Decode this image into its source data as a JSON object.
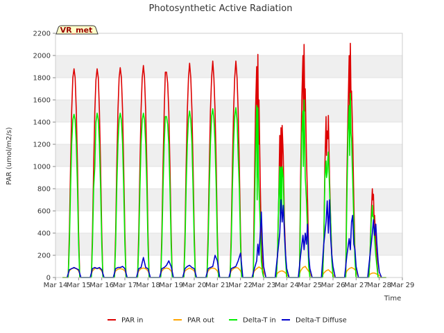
{
  "chart_data": {
    "type": "line",
    "title": "Photosynthetic Active Radiation",
    "xlabel": "Time",
    "ylabel": "PAR (umol/m2/s)",
    "site_label": "VR_met",
    "ylim": [
      0,
      2200
    ],
    "xlim": [
      14,
      29
    ],
    "grid": "horizontal bands",
    "legend_position": "bottom-center",
    "x_ticks": [
      14,
      15,
      16,
      17,
      18,
      19,
      20,
      21,
      22,
      23,
      24,
      25,
      26,
      27,
      28,
      29
    ],
    "x_tick_labels": [
      "Mar 14",
      "Mar 15",
      "Mar 16",
      "Mar 17",
      "Mar 18",
      "Mar 19",
      "Mar 20",
      "Mar 21",
      "Mar 22",
      "Mar 23",
      "Mar 24",
      "Mar 25",
      "Mar 26",
      "Mar 27",
      "Mar 28",
      "Mar 29"
    ],
    "y_ticks": [
      0,
      200,
      400,
      600,
      800,
      1000,
      1200,
      1400,
      1600,
      1800,
      2000,
      2200
    ],
    "series": [
      {
        "name": "PAR in",
        "color": "#dd0000",
        "x": [
          14.3,
          14.55,
          14.6,
          14.65,
          14.7,
          14.75,
          14.8,
          14.85,
          14.9,
          14.95,
          15.0,
          15.05,
          15.3,
          15.55,
          15.6,
          15.65,
          15.7,
          15.75,
          15.8,
          15.85,
          15.9,
          15.95,
          16.0,
          16.05,
          16.3,
          16.55,
          16.6,
          16.65,
          16.7,
          16.75,
          16.8,
          16.85,
          16.9,
          16.95,
          17.0,
          17.05,
          17.3,
          17.55,
          17.6,
          17.65,
          17.7,
          17.75,
          17.8,
          17.85,
          17.9,
          17.95,
          18.0,
          18.05,
          18.3,
          18.55,
          18.6,
          18.65,
          18.7,
          18.75,
          18.8,
          18.85,
          18.9,
          18.95,
          19.0,
          19.05,
          19.3,
          19.55,
          19.6,
          19.65,
          19.7,
          19.75,
          19.8,
          19.85,
          19.9,
          19.95,
          20.0,
          20.05,
          20.3,
          20.55,
          20.6,
          20.65,
          20.7,
          20.75,
          20.8,
          20.85,
          20.9,
          20.95,
          21.0,
          21.05,
          21.3,
          21.55,
          21.6,
          21.65,
          21.7,
          21.75,
          21.8,
          21.85,
          21.9,
          21.95,
          22.0,
          22.05,
          22.3,
          22.55,
          22.6,
          22.65,
          22.7,
          22.72,
          22.75,
          22.78,
          22.8,
          22.85,
          22.9,
          22.95,
          23.0,
          23.05,
          23.3,
          23.55,
          23.6,
          23.65,
          23.7,
          23.72,
          23.75,
          23.78,
          23.8,
          23.85,
          23.9,
          23.95,
          24.0,
          24.05,
          24.3,
          24.55,
          24.6,
          24.65,
          24.7,
          24.72,
          24.75,
          24.78,
          24.8,
          24.85,
          24.9,
          24.95,
          25.0,
          25.05,
          25.3,
          25.55,
          25.6,
          25.65,
          25.7,
          25.72,
          25.75,
          25.78,
          25.8,
          25.85,
          25.9,
          25.95,
          26.0,
          26.05,
          26.3,
          26.55,
          26.6,
          26.65,
          26.7,
          26.72,
          26.75,
          26.78,
          26.8,
          26.85,
          26.9,
          26.95,
          27.0,
          27.05,
          27.3,
          27.55,
          27.6,
          27.65,
          27.7,
          27.72,
          27.75,
          27.78,
          27.8,
          27.85,
          27.9,
          27.95,
          28.0,
          28.05,
          28.3
        ],
        "y": [
          0,
          0,
          400,
          1000,
          1500,
          1800,
          1880,
          1800,
          1500,
          1000,
          400,
          0,
          0,
          0,
          400,
          1000,
          1500,
          1780,
          1880,
          1800,
          1500,
          1000,
          400,
          0,
          0,
          0,
          400,
          1000,
          1500,
          1800,
          1890,
          1800,
          1500,
          1000,
          400,
          0,
          0,
          0,
          400,
          1000,
          1500,
          1800,
          1910,
          1800,
          1500,
          1000,
          400,
          0,
          0,
          0,
          400,
          1000,
          1500,
          1850,
          1850,
          1750,
          1500,
          1000,
          400,
          0,
          0,
          0,
          400,
          1000,
          1500,
          1800,
          1930,
          1800,
          1500,
          1000,
          400,
          0,
          0,
          0,
          400,
          1000,
          1500,
          1800,
          1950,
          1800,
          1500,
          1000,
          400,
          0,
          0,
          0,
          400,
          1000,
          1500,
          1800,
          1950,
          1800,
          1500,
          1000,
          400,
          0,
          0,
          0,
          800,
          1500,
          1900,
          900,
          2010,
          1200,
          1600,
          900,
          300,
          100,
          0,
          0,
          0,
          0,
          200,
          700,
          1280,
          600,
          1350,
          700,
          1370,
          1100,
          500,
          200,
          0,
          0,
          0,
          0,
          900,
          1600,
          2000,
          1300,
          2100,
          1500,
          1700,
          1100,
          700,
          200,
          0,
          0,
          0,
          0,
          300,
          1000,
          1450,
          1100,
          1320,
          1250,
          1460,
          900,
          500,
          200,
          0,
          0,
          0,
          0,
          900,
          1500,
          2000,
          1400,
          2110,
          1600,
          1680,
          1300,
          700,
          200,
          0,
          0,
          0,
          0,
          200,
          550,
          800,
          700,
          750,
          500,
          560,
          300,
          150,
          0,
          0,
          0,
          0
        ]
      },
      {
        "name": "PAR out",
        "color": "#ffa500",
        "x": [
          14.5,
          14.6,
          14.7,
          14.8,
          14.9,
          15.0,
          15.1,
          15.5,
          15.6,
          15.7,
          15.8,
          15.9,
          16.0,
          16.1,
          16.5,
          16.6,
          16.7,
          16.8,
          16.9,
          17.0,
          17.1,
          17.5,
          17.6,
          17.7,
          17.8,
          17.9,
          18.0,
          18.1,
          18.5,
          18.6,
          18.7,
          18.8,
          18.9,
          19.0,
          19.1,
          19.5,
          19.6,
          19.7,
          19.8,
          19.9,
          20.0,
          20.1,
          20.5,
          20.6,
          20.7,
          20.8,
          20.9,
          21.0,
          21.1,
          21.5,
          21.6,
          21.7,
          21.8,
          21.9,
          22.0,
          22.1,
          22.5,
          22.6,
          22.7,
          22.8,
          22.9,
          23.0,
          23.1,
          23.5,
          23.6,
          23.7,
          23.8,
          23.9,
          24.0,
          24.1,
          24.5,
          24.6,
          24.7,
          24.8,
          24.9,
          25.0,
          25.1,
          25.5,
          25.6,
          25.7,
          25.8,
          25.9,
          26.0,
          26.1,
          26.5,
          26.6,
          26.7,
          26.8,
          26.9,
          27.0,
          27.1,
          27.5,
          27.6,
          27.7,
          27.8,
          27.9,
          28.0,
          28.1
        ],
        "y": [
          0,
          60,
          80,
          85,
          80,
          60,
          0,
          0,
          60,
          80,
          85,
          80,
          60,
          0,
          0,
          60,
          75,
          80,
          75,
          60,
          0,
          0,
          60,
          80,
          85,
          80,
          60,
          0,
          0,
          60,
          80,
          85,
          80,
          60,
          0,
          0,
          60,
          75,
          85,
          75,
          60,
          0,
          0,
          60,
          80,
          85,
          80,
          60,
          0,
          0,
          60,
          80,
          90,
          85,
          60,
          0,
          0,
          60,
          80,
          95,
          80,
          60,
          0,
          0,
          40,
          55,
          60,
          50,
          30,
          0,
          0,
          60,
          90,
          100,
          70,
          40,
          0,
          0,
          40,
          60,
          70,
          50,
          30,
          0,
          0,
          60,
          80,
          90,
          80,
          60,
          0,
          0,
          30,
          40,
          40,
          30,
          20,
          0
        ]
      },
      {
        "name": "Delta-T in",
        "color": "#00ee00",
        "x": [
          14.3,
          14.55,
          14.6,
          14.65,
          14.7,
          14.75,
          14.8,
          14.85,
          14.9,
          14.95,
          15.0,
          15.05,
          15.3,
          15.55,
          15.6,
          15.65,
          15.7,
          15.75,
          15.8,
          15.85,
          15.9,
          15.95,
          16.0,
          16.05,
          16.3,
          16.55,
          16.6,
          16.65,
          16.7,
          16.75,
          16.8,
          16.85,
          16.9,
          16.95,
          17.0,
          17.05,
          17.3,
          17.55,
          17.6,
          17.65,
          17.7,
          17.75,
          17.8,
          17.85,
          17.9,
          17.95,
          18.0,
          18.05,
          18.3,
          18.55,
          18.6,
          18.65,
          18.7,
          18.75,
          18.8,
          18.85,
          18.9,
          18.95,
          19.0,
          19.05,
          19.3,
          19.55,
          19.6,
          19.65,
          19.7,
          19.75,
          19.8,
          19.85,
          19.9,
          19.95,
          20.0,
          20.05,
          20.3,
          20.55,
          20.6,
          20.65,
          20.7,
          20.75,
          20.8,
          20.85,
          20.9,
          20.95,
          21.0,
          21.05,
          21.3,
          21.55,
          21.6,
          21.65,
          21.7,
          21.75,
          21.8,
          21.85,
          21.9,
          21.95,
          22.0,
          22.05,
          22.3,
          22.55,
          22.6,
          22.65,
          22.7,
          22.72,
          22.75,
          22.78,
          22.8,
          22.85,
          22.9,
          22.95,
          23.0,
          23.05,
          23.3,
          23.55,
          23.6,
          23.65,
          23.7,
          23.72,
          23.75,
          23.78,
          23.8,
          23.85,
          23.9,
          23.95,
          24.0,
          24.05,
          24.3,
          24.55,
          24.6,
          24.65,
          24.7,
          24.72,
          24.75,
          24.78,
          24.8,
          24.85,
          24.9,
          24.95,
          25.0,
          25.05,
          25.3,
          25.55,
          25.6,
          25.65,
          25.7,
          25.72,
          25.75,
          25.78,
          25.8,
          25.85,
          25.9,
          25.95,
          26.0,
          26.05,
          26.3,
          26.55,
          26.6,
          26.65,
          26.7,
          26.72,
          26.75,
          26.78,
          26.8,
          26.85,
          26.9,
          26.95,
          27.0,
          27.05,
          27.3,
          27.55,
          27.6,
          27.65,
          27.7,
          27.72,
          27.75,
          27.78,
          27.8,
          27.85,
          27.9,
          27.95,
          28.0,
          28.05,
          28.3
        ],
        "y": [
          0,
          0,
          300,
          800,
          1200,
          1420,
          1470,
          1420,
          1200,
          800,
          300,
          0,
          0,
          0,
          300,
          800,
          1000,
          1400,
          1480,
          1420,
          1200,
          800,
          300,
          0,
          0,
          0,
          300,
          800,
          1200,
          1420,
          1480,
          1420,
          1200,
          800,
          300,
          0,
          0,
          0,
          300,
          800,
          1200,
          1420,
          1480,
          1420,
          1200,
          800,
          300,
          0,
          0,
          0,
          300,
          800,
          1200,
          1450,
          1450,
          1380,
          1200,
          800,
          300,
          0,
          0,
          0,
          300,
          800,
          1200,
          1430,
          1500,
          1420,
          1200,
          800,
          300,
          0,
          0,
          0,
          300,
          800,
          1200,
          1450,
          1520,
          1430,
          1200,
          800,
          300,
          0,
          0,
          0,
          300,
          800,
          1200,
          1450,
          1530,
          1420,
          1100,
          800,
          300,
          0,
          0,
          0,
          500,
          1100,
          1550,
          700,
          1530,
          900,
          800,
          500,
          150,
          50,
          0,
          0,
          0,
          0,
          200,
          700,
          1000,
          500,
          990,
          600,
          1000,
          900,
          400,
          150,
          0,
          0,
          0,
          0,
          700,
          1300,
          1500,
          1000,
          1600,
          1200,
          900,
          700,
          400,
          100,
          0,
          0,
          0,
          0,
          300,
          900,
          1050,
          900,
          950,
          1080,
          1130,
          800,
          500,
          150,
          0,
          0,
          0,
          0,
          700,
          1300,
          1550,
          1100,
          1660,
          1300,
          1250,
          900,
          500,
          150,
          0,
          0,
          0,
          0,
          200,
          500,
          650,
          550,
          550,
          400,
          350,
          200,
          100,
          0,
          0,
          0,
          0
        ]
      },
      {
        "name": "Delta-T Diffuse",
        "color": "#0000cc",
        "x": [
          14.5,
          14.6,
          14.7,
          14.8,
          14.9,
          15.0,
          15.1,
          15.5,
          15.6,
          15.7,
          15.8,
          15.9,
          16.0,
          16.1,
          16.5,
          16.6,
          16.7,
          16.8,
          16.9,
          17.0,
          17.1,
          17.5,
          17.6,
          17.7,
          17.8,
          17.9,
          18.0,
          18.1,
          18.5,
          18.6,
          18.7,
          18.8,
          18.9,
          19.0,
          19.1,
          19.5,
          19.6,
          19.7,
          19.8,
          19.9,
          20.0,
          20.1,
          20.5,
          20.6,
          20.7,
          20.8,
          20.9,
          21.0,
          21.1,
          21.5,
          21.6,
          21.7,
          21.8,
          21.9,
          22.0,
          22.1,
          22.5,
          22.6,
          22.7,
          22.75,
          22.8,
          22.85,
          22.9,
          22.95,
          23.0,
          23.1,
          23.5,
          23.6,
          23.7,
          23.75,
          23.8,
          23.85,
          23.9,
          23.95,
          24.0,
          24.1,
          24.5,
          24.6,
          24.7,
          24.75,
          24.8,
          24.85,
          24.9,
          24.95,
          25.0,
          25.1,
          25.5,
          25.6,
          25.7,
          25.75,
          25.8,
          25.85,
          25.9,
          25.95,
          26.0,
          26.1,
          26.5,
          26.6,
          26.7,
          26.75,
          26.8,
          26.85,
          26.9,
          26.95,
          27.0,
          27.1,
          27.5,
          27.6,
          27.7,
          27.75,
          27.8,
          27.85,
          27.9,
          27.95,
          28.0,
          28.1
        ],
        "y": [
          0,
          70,
          80,
          90,
          80,
          70,
          0,
          0,
          80,
          90,
          80,
          90,
          70,
          0,
          0,
          80,
          90,
          90,
          100,
          80,
          0,
          0,
          80,
          90,
          180,
          90,
          80,
          0,
          0,
          80,
          90,
          110,
          150,
          100,
          0,
          0,
          80,
          100,
          110,
          90,
          80,
          0,
          0,
          80,
          90,
          100,
          200,
          150,
          0,
          0,
          80,
          90,
          100,
          150,
          220,
          0,
          0,
          80,
          150,
          300,
          200,
          380,
          590,
          300,
          100,
          0,
          0,
          200,
          400,
          700,
          500,
          650,
          400,
          200,
          80,
          0,
          0,
          200,
          380,
          250,
          400,
          300,
          480,
          200,
          80,
          0,
          0,
          300,
          500,
          690,
          400,
          700,
          350,
          200,
          100,
          0,
          0,
          200,
          350,
          250,
          500,
          560,
          300,
          250,
          100,
          0,
          0,
          200,
          400,
          520,
          380,
          480,
          300,
          150,
          50,
          0
        ]
      }
    ]
  }
}
